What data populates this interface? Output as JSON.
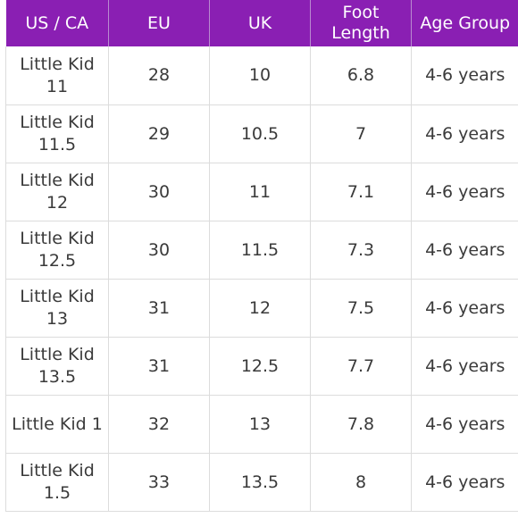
{
  "table": {
    "headers": [
      "US / CA",
      "EU",
      "UK",
      "Foot\nLength",
      "Age Group"
    ],
    "rows": [
      [
        "Little Kid 11",
        "28",
        "10",
        "6.8",
        "4-6 years"
      ],
      [
        "Little Kid 11.5",
        "29",
        "10.5",
        "7",
        "4-6 years"
      ],
      [
        "Little Kid 12",
        "30",
        "11",
        "7.1",
        "4-6 years"
      ],
      [
        "Little Kid 12.5",
        "30",
        "11.5",
        "7.3",
        "4-6 years"
      ],
      [
        "Little Kid 13",
        "31",
        "12",
        "7.5",
        "4-6 years"
      ],
      [
        "Little Kid 13.5",
        "31",
        "12.5",
        "7.7",
        "4-6 years"
      ],
      [
        "Little Kid 1",
        "32",
        "13",
        "7.8",
        "4-6 years"
      ],
      [
        "Little Kid 1.5",
        "33",
        "13.5",
        "8",
        "4-6 years"
      ]
    ]
  },
  "colors": {
    "header_bg": "#8a1fb3",
    "header_text": "#ffffff",
    "cell_text": "#3a3a3a",
    "grid_line": "#dcdcdc"
  }
}
